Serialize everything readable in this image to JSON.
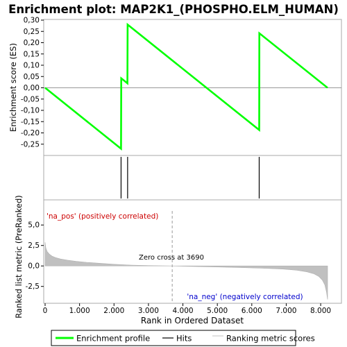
{
  "chart_data": {
    "type": "line",
    "title": "Enrichment plot: MAP2K1_(PHOSPHO.ELM_HUMAN)",
    "top_panel": {
      "ylabel": "Enrichment score (ES)",
      "ylim": [
        -0.3,
        0.3
      ],
      "yticks": [
        0.3,
        0.25,
        0.2,
        0.15,
        0.1,
        0.05,
        0.0,
        -0.05,
        -0.1,
        -0.15,
        -0.2,
        -0.25
      ],
      "ytick_labels": [
        "0,30",
        "0,25",
        "0,20",
        "0,15",
        "0,10",
        "0,05",
        "0,00",
        "-0,05",
        "-0,10",
        "-0,15",
        "-0,20",
        "-0,25"
      ],
      "series": [
        {
          "name": "Enrichment profile",
          "color": "#00ff00",
          "x": [
            0,
            2205,
            2210,
            2390,
            2395,
            6215,
            6220,
            8200
          ],
          "y": [
            0.0,
            -0.27,
            0.042,
            0.02,
            0.28,
            -0.187,
            0.242,
            0.0
          ]
        }
      ]
    },
    "hits": [
      2205,
      2395,
      6215
    ],
    "bottom_panel": {
      "ylabel": "Ranked list metric (PreRanked)",
      "xlabel": "Rank in Ordered Dataset",
      "ylim": [
        -4.3,
        6.9
      ],
      "yticks": [
        5.0,
        2.5,
        0.0,
        -2.5
      ],
      "ytick_labels": [
        "5,0",
        "2,5",
        "0,0",
        "-2,5"
      ],
      "x_max": 8200,
      "xticks": [
        0,
        1000,
        2000,
        3000,
        4000,
        5000,
        6000,
        7000,
        8000
      ],
      "xtick_labels": [
        "0",
        "1.000",
        "2.000",
        "3.000",
        "4.000",
        "5.000",
        "6.000",
        "7.000",
        "8.000"
      ],
      "metric_curve": {
        "x": [
          0,
          20,
          60,
          120,
          200,
          300,
          450,
          650,
          900,
          1200,
          1600,
          2000,
          2500,
          3000,
          3690,
          4300,
          5000,
          5700,
          6300,
          6900,
          7300,
          7600,
          7800,
          7950,
          8050,
          8120,
          8170,
          8200
        ],
        "y": [
          2.9,
          2.2,
          1.75,
          1.45,
          1.2,
          1.02,
          0.85,
          0.7,
          0.56,
          0.44,
          0.32,
          0.2,
          0.1,
          0.04,
          0.0,
          -0.06,
          -0.13,
          -0.2,
          -0.28,
          -0.38,
          -0.52,
          -0.72,
          -0.95,
          -1.3,
          -1.75,
          -2.3,
          -3.2,
          -4.1
        ]
      },
      "zero_cross_label": "Zero cross at 3690",
      "zero_cross": 3690,
      "pos_label": "'na_pos' (positively correlated)",
      "neg_label": "'na_neg' (negatively correlated)"
    },
    "color_bar": [
      {
        "from": 0,
        "to": 150,
        "color": "#e8222f"
      },
      {
        "from": 150,
        "to": 1150,
        "color": "#f04b57"
      },
      {
        "from": 1150,
        "to": 1620,
        "color": "#f26b79"
      },
      {
        "from": 1620,
        "to": 2400,
        "color": "#f78d9c"
      },
      {
        "from": 2400,
        "to": 3690,
        "color": "#fbc7e8"
      },
      {
        "from": 3690,
        "to": 5100,
        "color": "#e5e2f8"
      },
      {
        "from": 5100,
        "to": 6150,
        "color": "#cbc8f2"
      },
      {
        "from": 6150,
        "to": 6800,
        "color": "#8a86ee"
      },
      {
        "from": 6800,
        "to": 7950,
        "color": "#6a60e4"
      },
      {
        "from": 7950,
        "to": 8200,
        "color": "#2200cc"
      }
    ],
    "legend": {
      "placement": "bottom",
      "items": [
        {
          "label": "Enrichment profile",
          "color": "#00ff00",
          "kind": "thick-line"
        },
        {
          "label": "Hits",
          "color": "#000000",
          "kind": "line"
        },
        {
          "label": "Ranking metric scores",
          "color": "#c0c0c0",
          "kind": "line"
        }
      ]
    }
  }
}
